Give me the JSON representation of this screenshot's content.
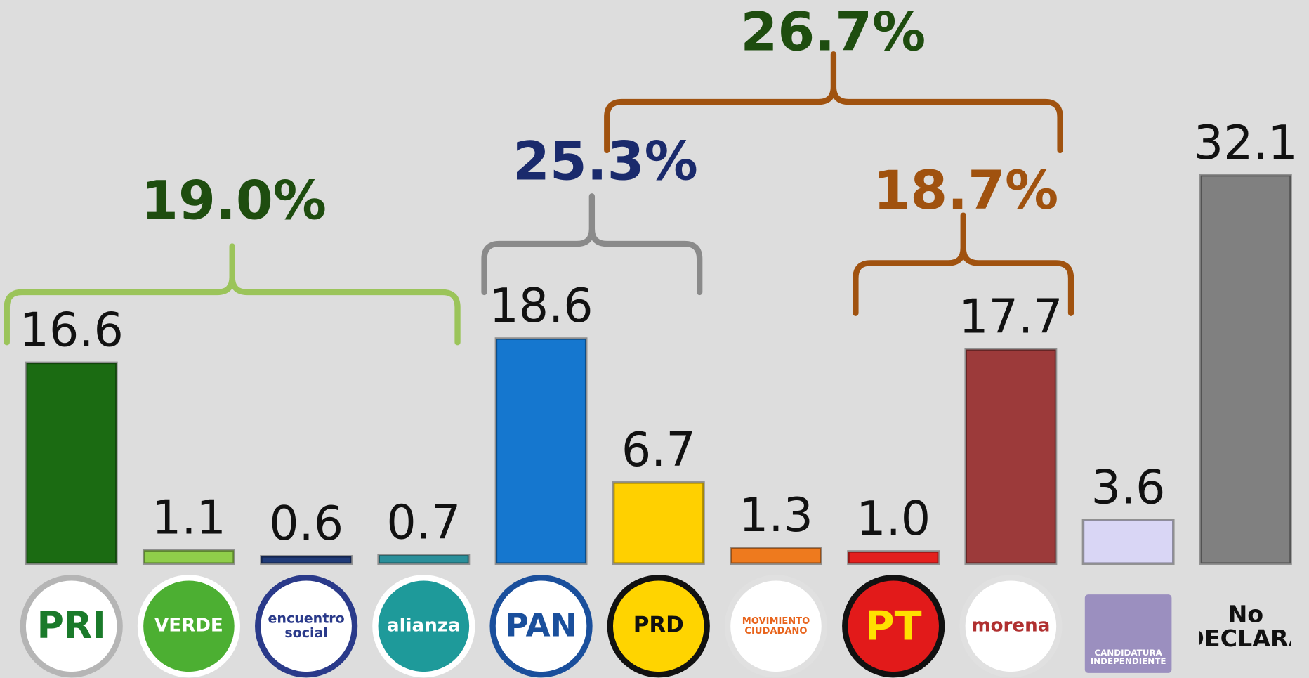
{
  "chart_data": {
    "type": "bar",
    "categories": [
      "PRI",
      "VERDE",
      "encuentro social",
      "alianza",
      "PAN",
      "PRD",
      "MOVIMIENTO CIUDADANO",
      "PT",
      "morena",
      "CANDIDATURA INDEPENDIENTE",
      "No DECLARA"
    ],
    "values": [
      16.6,
      1.1,
      0.6,
      0.7,
      18.6,
      6.7,
      1.3,
      1.0,
      17.7,
      3.6,
      32.1
    ],
    "value_labels": [
      "16.6",
      "1.1",
      "0.6",
      "0.7",
      "18.6",
      "6.7",
      "1.3",
      "1.0",
      "17.7",
      "3.6",
      "32.1"
    ],
    "colors": [
      "#1b6b12",
      "#8fce4a",
      "#1f3a78",
      "#2a8f9a",
      "#1577cf",
      "#ffd000",
      "#ee7a1e",
      "#e3201e",
      "#9c3a3a",
      "#d9d6f5",
      "#808080"
    ],
    "ylim": [
      0,
      35
    ],
    "annotations": [
      "19.0%",
      "25.3%",
      "18.7%",
      "26.7%"
    ]
  }
}
